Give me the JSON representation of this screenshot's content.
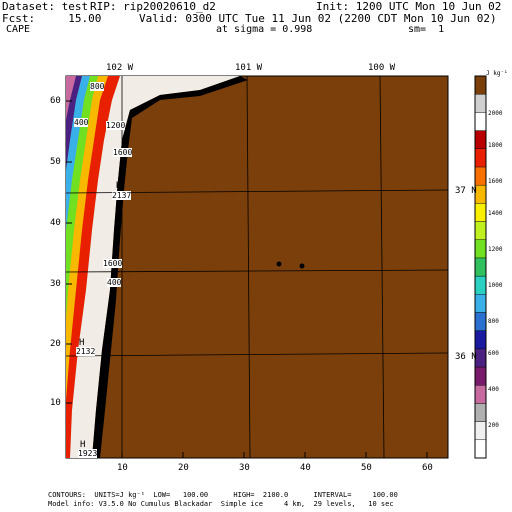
{
  "header": {
    "dataset": "Dataset: test",
    "rip": "RIP: rip20020610_d2",
    "init": "Init: 1200 UTC Mon 10 Jun 02",
    "fcst": "Fcst:     15.00",
    "valid": "Valid: 0300 UTC Tue 11 Jun 02 (2200 CDT Mon 10 Jun 02)",
    "field": "CAPE",
    "sigma": "at sigma = 0.998",
    "sm": "sm=  1"
  },
  "map": {
    "longitudes": [
      "102 W",
      "101 W",
      "100 W"
    ],
    "latitudes": [
      "37 N",
      "36 N"
    ],
    "x_ticks": [
      "10",
      "20",
      "30",
      "40",
      "50",
      "60"
    ],
    "y_ticks": [
      "10",
      "20",
      "30",
      "40",
      "50",
      "60"
    ],
    "contour_labels": [
      "800",
      "400",
      "1200",
      "1600",
      "2137",
      "1600",
      "400",
      "2132",
      "1923"
    ],
    "hl_labels": [
      "H",
      "H",
      "H"
    ],
    "background_color": "#7a3f0a"
  },
  "colorbar": {
    "units": "J kg⁻¹",
    "ticks": [
      "200",
      "400",
      "600",
      "800",
      "1000",
      "1200",
      "1400",
      "1600",
      "1800",
      "2000"
    ],
    "colors": [
      "#ffffff",
      "#f0f0f0",
      "#b0b0b0",
      "#c76aa0",
      "#7a1a6a",
      "#4a2080",
      "#1a1aa0",
      "#2a70d0",
      "#3ab0e8",
      "#2ad0c0",
      "#30c060",
      "#70e020",
      "#c0f020",
      "#f8f000",
      "#f8b800",
      "#f87000",
      "#e82000",
      "#b80000",
      "#ffffff",
      "#d0d0d0",
      "#7a3f0a"
    ]
  },
  "footer": {
    "line1": "CONTOURS:  UNITS=J kg⁻¹  LOW=   100.00      HIGH=  2100.0      INTERVAL=     100.00",
    "line2": "Model info: V3.5.0 No Cumulus Blackadar  Simple ice     4 km,  29 levels,   10 sec"
  }
}
